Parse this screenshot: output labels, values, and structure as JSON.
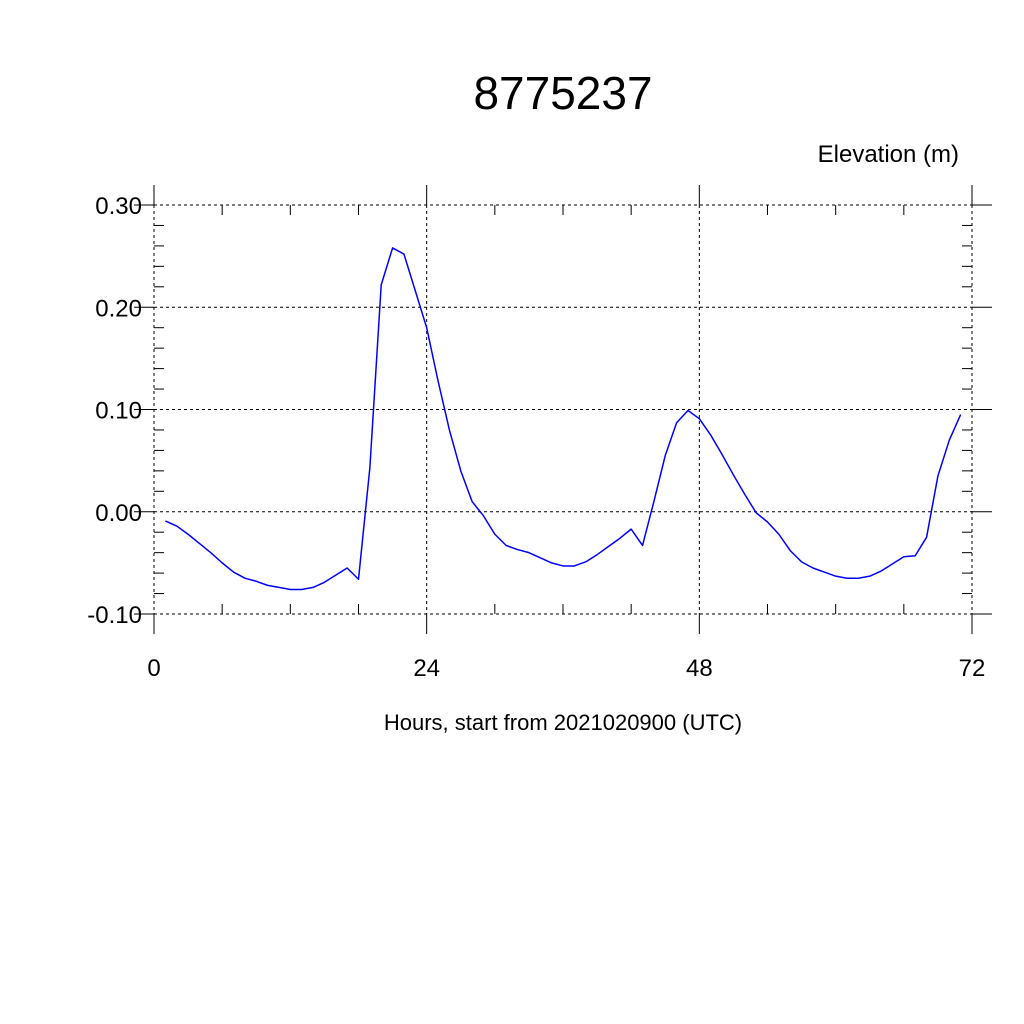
{
  "chart_data": {
    "type": "line",
    "title": "8775237",
    "ylabel": "Elevation (m)",
    "xlabel": "Hours, start from 2021020900 (UTC)",
    "xlim": [
      0,
      72
    ],
    "ylim": [
      -0.1,
      0.3
    ],
    "x_ticks": [
      0,
      24,
      48,
      72
    ],
    "x_tick_labels": [
      "0",
      "24",
      "48",
      "72"
    ],
    "y_ticks": [
      -0.1,
      0.0,
      0.1,
      0.2,
      0.3
    ],
    "y_tick_labels": [
      "-0.10",
      "0.00",
      "0.10",
      "0.20",
      "0.30"
    ],
    "grid": true,
    "series_color": "#0000ff",
    "series": [
      {
        "x": [
          1,
          2,
          3,
          4,
          5,
          6,
          7,
          8,
          9,
          10,
          11,
          12,
          13,
          14,
          15,
          16,
          17,
          18,
          19,
          20,
          21,
          22,
          23,
          24,
          25,
          26,
          27,
          28,
          29,
          30,
          31,
          32,
          33,
          34,
          35,
          36,
          37,
          38,
          39,
          40,
          41,
          42,
          43,
          44,
          45,
          46,
          47,
          48,
          49,
          50,
          51,
          52,
          53,
          54,
          55,
          56,
          57,
          58,
          59,
          60,
          61,
          62,
          63,
          64,
          65,
          66,
          67,
          68,
          69,
          70,
          71,
          72
        ],
        "y": [
          -0.009,
          -0.014,
          -0.022,
          -0.031,
          -0.04,
          -0.05,
          -0.059,
          -0.065,
          -0.068,
          -0.072,
          -0.074,
          -0.076,
          -0.076,
          -0.074,
          -0.069,
          -0.062,
          -0.055,
          -0.066,
          0.043,
          0.222,
          0.258,
          0.252,
          0.216,
          0.18,
          0.128,
          0.08,
          0.04,
          0.01,
          -0.004,
          -0.022,
          -0.033,
          -0.037,
          -0.04,
          -0.045,
          -0.05,
          -0.053,
          -0.053,
          -0.049,
          -0.042,
          -0.034,
          -0.026,
          -0.017,
          -0.033,
          0.01,
          0.055,
          0.087,
          0.099,
          0.091,
          0.075,
          0.056,
          0.036,
          0.017,
          -0.001,
          -0.01,
          -0.022,
          -0.038,
          -0.049,
          -0.055,
          -0.059,
          -0.063,
          -0.065,
          -0.065,
          -0.063,
          -0.058,
          -0.051,
          -0.044,
          -0.043,
          -0.025,
          0.035,
          0.07,
          0.095,
          null
        ]
      }
    ]
  }
}
